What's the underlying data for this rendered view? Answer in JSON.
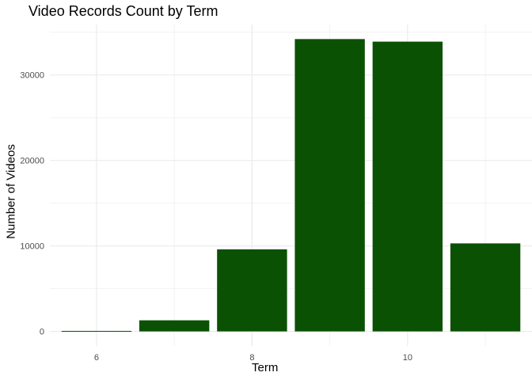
{
  "chart_data": {
    "type": "bar",
    "title": "Video Records Count by Term",
    "xlabel": "Term",
    "ylabel": "Number of Videos",
    "x": [
      6,
      7,
      8,
      9,
      10,
      11
    ],
    "values": [
      60,
      1300,
      9600,
      34200,
      33900,
      10300
    ],
    "xlim": [
      5.4,
      11.6
    ],
    "ylim": [
      -1700,
      35900
    ],
    "xticks": [
      6,
      8,
      10
    ],
    "yticks": [
      0,
      10000,
      20000,
      30000
    ],
    "bar_color": "#0b5103",
    "grid": true,
    "legend": "none"
  }
}
